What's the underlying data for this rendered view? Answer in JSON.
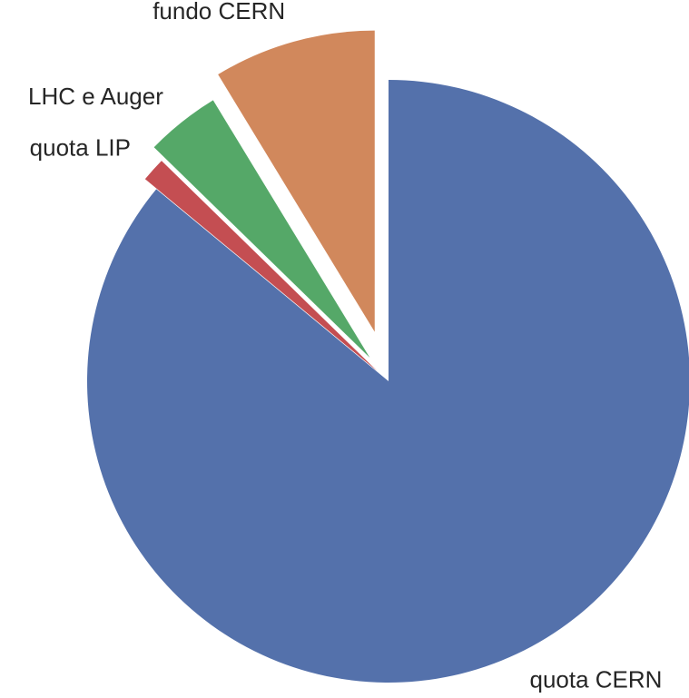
{
  "chart_data": {
    "type": "pie",
    "categories": [
      "quota CERN",
      "quota LIP",
      "LHC e Auger",
      "fundo CERN"
    ],
    "values": [
      86,
      1.3,
      4,
      8.7
    ],
    "colors": [
      "#5471ab",
      "#c44e52",
      "#55a868",
      "#d1885c"
    ],
    "explode": [
      0,
      0.05,
      0.1,
      0.17
    ],
    "start_angle": 90,
    "direction": "clockwise"
  }
}
